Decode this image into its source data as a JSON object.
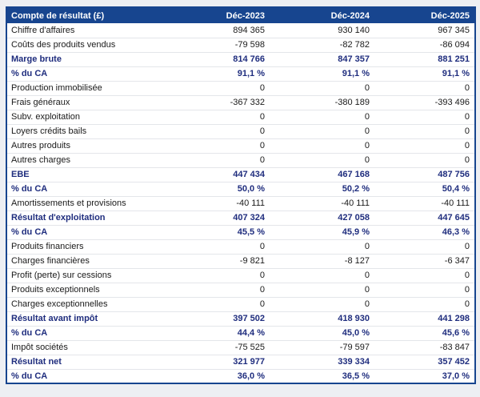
{
  "chart_data": {
    "type": "table",
    "title": "Compte de résultat (£)",
    "columns": [
      "Déc-2023",
      "Déc-2024",
      "Déc-2025"
    ],
    "rows": [
      {
        "label": "Chiffre d'affaires",
        "bold": false,
        "values": [
          "894 365",
          "930 140",
          "967 345"
        ]
      },
      {
        "label": "Coûts des produits vendus",
        "bold": false,
        "values": [
          "-79 598",
          "-82 782",
          "-86 094"
        ]
      },
      {
        "label": "Marge brute",
        "bold": true,
        "values": [
          "814 766",
          "847 357",
          "881 251"
        ]
      },
      {
        "label": "% du CA",
        "bold": true,
        "values": [
          "91,1 %",
          "91,1 %",
          "91,1 %"
        ]
      },
      {
        "label": "Production immobilisée",
        "bold": false,
        "values": [
          "0",
          "0",
          "0"
        ]
      },
      {
        "label": "Frais généraux",
        "bold": false,
        "values": [
          "-367 332",
          "-380 189",
          "-393 496"
        ]
      },
      {
        "label": "Subv. exploitation",
        "bold": false,
        "values": [
          "0",
          "0",
          "0"
        ]
      },
      {
        "label": "Loyers crédits bails",
        "bold": false,
        "values": [
          "0",
          "0",
          "0"
        ]
      },
      {
        "label": "Autres produits",
        "bold": false,
        "values": [
          "0",
          "0",
          "0"
        ]
      },
      {
        "label": "Autres charges",
        "bold": false,
        "values": [
          "0",
          "0",
          "0"
        ]
      },
      {
        "label": "EBE",
        "bold": true,
        "values": [
          "447 434",
          "467 168",
          "487 756"
        ]
      },
      {
        "label": "% du CA",
        "bold": true,
        "values": [
          "50,0 %",
          "50,2 %",
          "50,4 %"
        ]
      },
      {
        "label": "Amortissements et provisions",
        "bold": false,
        "values": [
          "-40 111",
          "-40 111",
          "-40 111"
        ]
      },
      {
        "label": "Résultat d'exploitation",
        "bold": true,
        "values": [
          "407 324",
          "427 058",
          "447 645"
        ]
      },
      {
        "label": "% du CA",
        "bold": true,
        "values": [
          "45,5 %",
          "45,9 %",
          "46,3 %"
        ]
      },
      {
        "label": "Produits financiers",
        "bold": false,
        "values": [
          "0",
          "0",
          "0"
        ]
      },
      {
        "label": "Charges financières",
        "bold": false,
        "values": [
          "-9 821",
          "-8 127",
          "-6 347"
        ]
      },
      {
        "label": "Profit (perte) sur cessions",
        "bold": false,
        "values": [
          "0",
          "0",
          "0"
        ]
      },
      {
        "label": "Produits exceptionnels",
        "bold": false,
        "values": [
          "0",
          "0",
          "0"
        ]
      },
      {
        "label": "Charges exceptionnelles",
        "bold": false,
        "values": [
          "0",
          "0",
          "0"
        ]
      },
      {
        "label": "Résultat avant impôt",
        "bold": true,
        "values": [
          "397 502",
          "418 930",
          "441 298"
        ]
      },
      {
        "label": "% du CA",
        "bold": true,
        "values": [
          "44,4 %",
          "45,0 %",
          "45,6 %"
        ]
      },
      {
        "label": "Impôt sociétés",
        "bold": false,
        "values": [
          "-75 525",
          "-79 597",
          "-83 847"
        ]
      },
      {
        "label": "Résultat net",
        "bold": true,
        "values": [
          "321 977",
          "339 334",
          "357 452"
        ]
      },
      {
        "label": "% du CA",
        "bold": true,
        "values": [
          "36,0 %",
          "36,5 %",
          "37,0 %"
        ]
      }
    ]
  },
  "colors": {
    "header_bg": "#17458F",
    "header_text": "#FFFFFF",
    "bold_row_text": "#1F2D7E",
    "body_text": "#1A1A1A",
    "row_divider": "#E4E6EA",
    "table_border": "#17458F",
    "page_bg": "#EDEFF3",
    "row_bg": "#FFFFFF"
  }
}
